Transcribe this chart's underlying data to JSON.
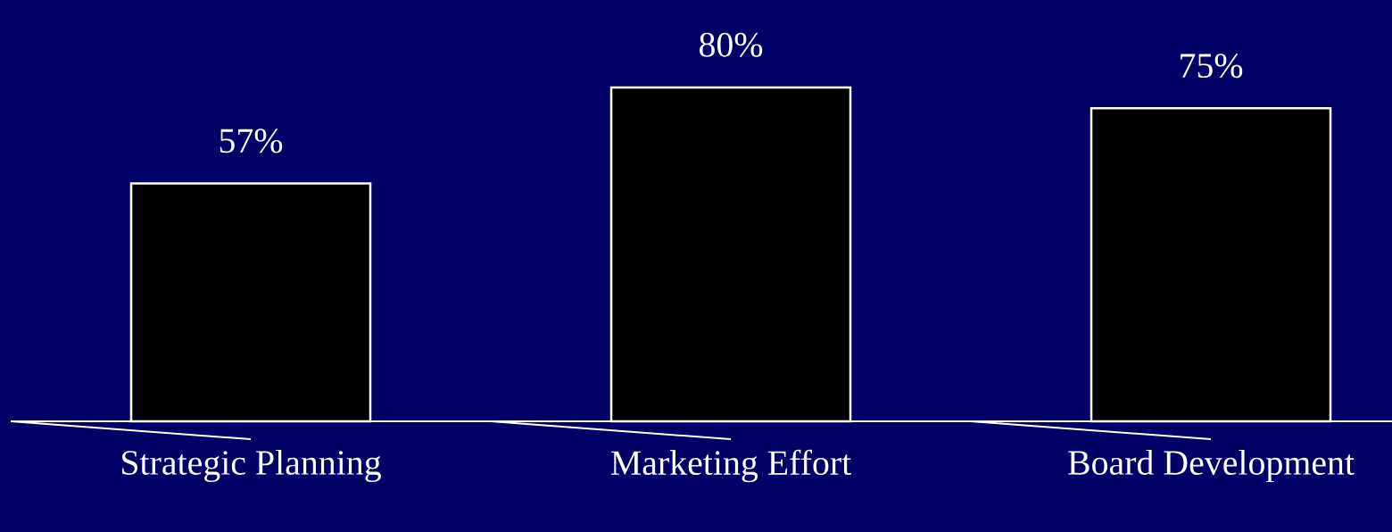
{
  "chart_data": {
    "type": "bar",
    "categories": [
      "Strategic Planning",
      "Marketing Effort",
      "Board Development"
    ],
    "values": [
      57,
      80,
      75
    ],
    "value_labels": [
      "57%",
      "80%",
      "75%"
    ],
    "color": "#000000"
  }
}
